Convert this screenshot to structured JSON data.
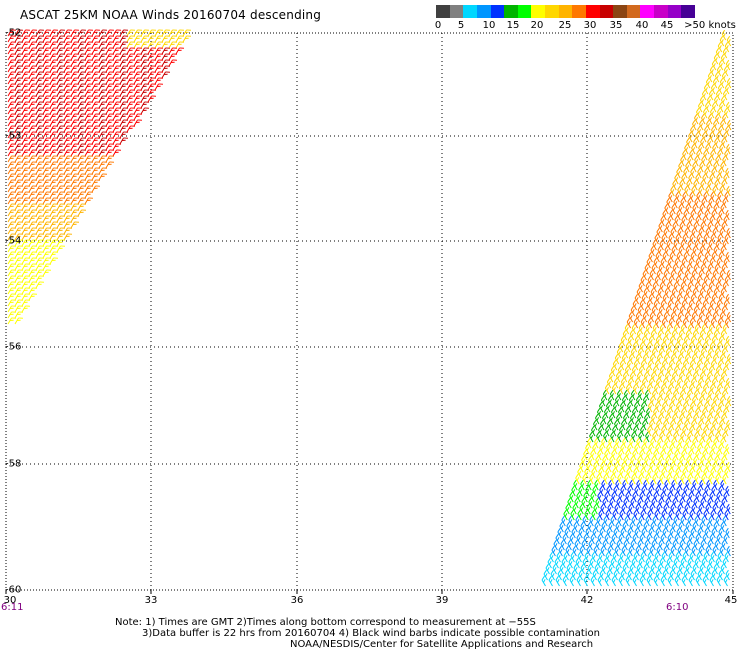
{
  "header": {
    "title": "ASCAT 25KM NOAA Winds 20160704 descending"
  },
  "colorbar": {
    "colors": [
      "#404040",
      "#808080",
      "#00d7ff",
      "#0096ff",
      "#0032ff",
      "#00b400",
      "#00ff00",
      "#ffff00",
      "#ffd700",
      "#ffb400",
      "#ff7800",
      "#ff0000",
      "#c80000",
      "#8b4513",
      "#d2691e",
      "#ff00ff",
      "#c800c8",
      "#9600c8",
      "#460096"
    ],
    "labels": [
      "0",
      "5",
      "10",
      "15",
      "20",
      "25",
      "30",
      "35",
      "40",
      "45",
      ">50 knots"
    ]
  },
  "map": {
    "lon_ticks": [
      "30",
      "33",
      "36",
      "39",
      "42",
      "45"
    ],
    "lat_ticks": [
      "-52",
      "-53",
      "-54",
      "-56",
      "-58",
      "-60"
    ],
    "time_left": "6:11",
    "time_right": "6:10",
    "swath_left_colors": [
      "#ff0000",
      "#ff7800",
      "#ffb400",
      "#ffd700",
      "#ffff00",
      "#c80000"
    ],
    "swath_right_colors": [
      "#ffd700",
      "#ffb400",
      "#ff7800",
      "#ffff00",
      "#00b400",
      "#00ff00",
      "#0032ff",
      "#0096ff",
      "#00d7ff"
    ]
  },
  "notes": {
    "line1": "Note: 1) Times are GMT 2)Times along bottom correspond to measurement at −55S",
    "line2": "3)Data buffer is 22 hrs from 20160704 4) Black wind barbs indicate possible contamination",
    "line3": "NOAA/NESDIS/Center for Satellite Applications and Research"
  }
}
